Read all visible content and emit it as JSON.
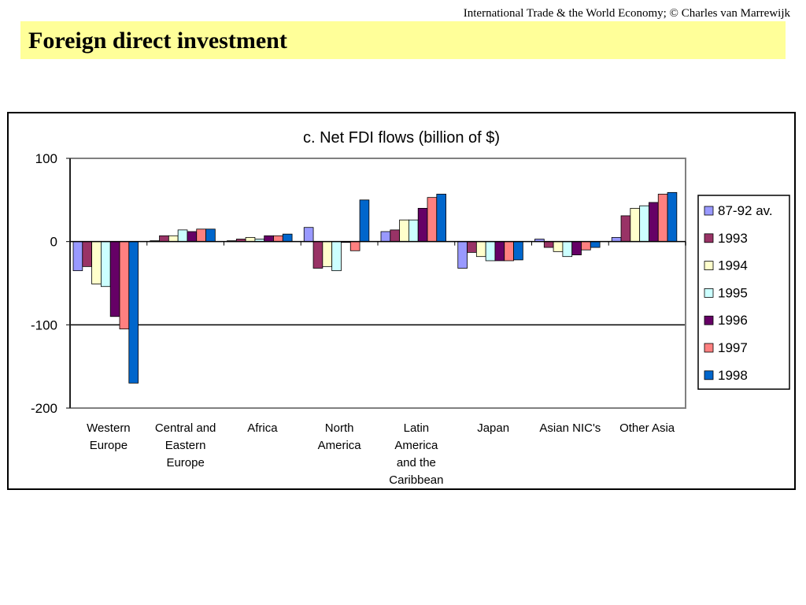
{
  "header": {
    "credit": "International Trade & the World Economy;  © Charles van Marrewijk",
    "title": "Foreign direct investment"
  },
  "chart_data": {
    "type": "bar",
    "title": "c. Net FDI flows (billion of $)",
    "xlabel": "",
    "ylabel": "",
    "ylim": [
      -200,
      100
    ],
    "yticks": [
      "100",
      "0",
      "-100",
      "-200"
    ],
    "grid": true,
    "legend_position": "right",
    "categories": [
      [
        "Western",
        "Europe"
      ],
      [
        "Central and",
        "Eastern",
        "Europe"
      ],
      [
        "Africa"
      ],
      [
        "North",
        "America"
      ],
      [
        "Latin",
        "America",
        "and the",
        "Caribbean"
      ],
      [
        "Japan"
      ],
      [
        "Asian NIC's"
      ],
      [
        "Other Asia"
      ]
    ],
    "series": [
      {
        "name": "87-92 av.",
        "color": "#9999ff",
        "values": [
          -35,
          1,
          1,
          17,
          12,
          -32,
          3,
          5
        ]
      },
      {
        "name": "1993",
        "color": "#993366",
        "values": [
          -30,
          7,
          3,
          -32,
          14,
          -13,
          -7,
          31
        ]
      },
      {
        "name": "1994",
        "color": "#ffffcc",
        "values": [
          -51,
          7,
          5,
          -30,
          26,
          -18,
          -12,
          40
        ]
      },
      {
        "name": "1995",
        "color": "#ccffff",
        "values": [
          -54,
          14,
          3,
          -35,
          26,
          -23,
          -18,
          43
        ]
      },
      {
        "name": "1996",
        "color": "#660066",
        "values": [
          -90,
          12,
          7,
          -1,
          40,
          -23,
          -16,
          47
        ]
      },
      {
        "name": "1997",
        "color": "#ff8080",
        "values": [
          -105,
          15,
          7,
          -11,
          53,
          -23,
          -10,
          57
        ]
      },
      {
        "name": "1998",
        "color": "#0066cc",
        "values": [
          -170,
          15,
          9,
          50,
          57,
          -22,
          -7,
          59
        ]
      }
    ]
  }
}
